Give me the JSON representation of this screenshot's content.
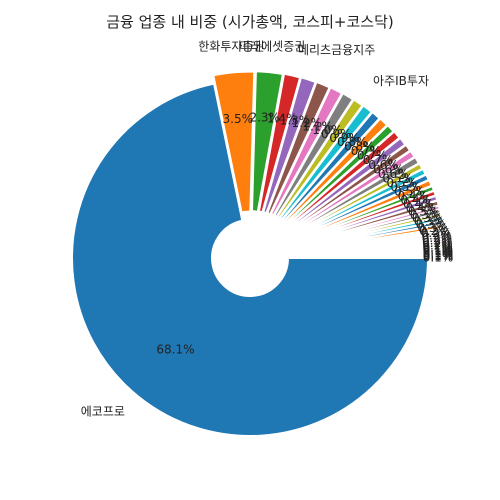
{
  "chart_data": {
    "type": "pie",
    "title": "금융 업종 내 비중 (시가총액, 코스피+코스닥)",
    "style": "donut, slices exploded outward, clockwise from 3 o'clock",
    "slices": [
      {
        "label": "에코프로",
        "value": 68.1,
        "pct_label": "68.1%",
        "color": "#1f77b4"
      },
      {
        "label": "한화투자증권",
        "value": 3.5,
        "pct_label": "3.5%",
        "color": "#ff7f0e"
      },
      {
        "label": "미래에셋증권",
        "value": 2.3,
        "pct_label": "2.3%",
        "color": "#2ca02c"
      },
      {
        "label": "메리츠금융지주",
        "value": 1.4,
        "pct_label": "1.4%",
        "color": "#d62728"
      },
      {
        "label": "",
        "value": 1.3,
        "pct_label": "1.3%",
        "color": "#9467bd"
      },
      {
        "label": "",
        "value": 1.2,
        "pct_label": "1.2%",
        "color": "#8c564b"
      },
      {
        "label": "",
        "value": 1.1,
        "pct_label": "1.1%",
        "color": "#e377c2"
      },
      {
        "label": "",
        "value": 1.0,
        "pct_label": "1.0%",
        "color": "#7f7f7f"
      },
      {
        "label": "아주IB투자",
        "value": 0.9,
        "pct_label": "0.9%",
        "color": "#bcbd22"
      },
      {
        "label": "",
        "value": 0.9,
        "pct_label": "0.9%",
        "color": "#17becf"
      },
      {
        "label": "",
        "value": 0.8,
        "pct_label": "0.8%",
        "color": "#1f77b4"
      },
      {
        "label": "",
        "value": 0.8,
        "pct_label": "0.8%",
        "color": "#ff7f0e"
      },
      {
        "label": "",
        "value": 0.7,
        "pct_label": "0.7%",
        "color": "#2ca02c"
      },
      {
        "label": "",
        "value": 0.7,
        "pct_label": "0.7%",
        "color": "#d62728"
      },
      {
        "label": "",
        "value": 0.7,
        "pct_label": "0.7%",
        "color": "#9467bd"
      },
      {
        "label": "",
        "value": 0.6,
        "pct_label": "0.6%",
        "color": "#8c564b"
      },
      {
        "label": "",
        "value": 0.6,
        "pct_label": "0.6%",
        "color": "#e377c2"
      },
      {
        "label": "",
        "value": 0.6,
        "pct_label": "0.6%",
        "color": "#7f7f7f"
      },
      {
        "label": "",
        "value": 0.5,
        "pct_label": "0.5%",
        "color": "#bcbd22"
      },
      {
        "label": "",
        "value": 0.5,
        "pct_label": "0.5%",
        "color": "#17becf"
      },
      {
        "label": "",
        "value": 0.5,
        "pct_label": "0.5%",
        "color": "#1f77b4"
      },
      {
        "label": "",
        "value": 0.5,
        "pct_label": "0.5%",
        "color": "#ff7f0e"
      },
      {
        "label": "",
        "value": 0.4,
        "pct_label": "0.4%",
        "color": "#2ca02c"
      },
      {
        "label": "",
        "value": 0.4,
        "pct_label": "0.4%",
        "color": "#d62728"
      },
      {
        "label": "",
        "value": 0.4,
        "pct_label": "0.4%",
        "color": "#9467bd"
      },
      {
        "label": "",
        "value": 0.4,
        "pct_label": "0.4%",
        "color": "#8c564b"
      },
      {
        "label": "",
        "value": 0.3,
        "pct_label": "0.3%",
        "color": "#e377c2"
      },
      {
        "label": "",
        "value": 0.3,
        "pct_label": "0.3%",
        "color": "#7f7f7f"
      },
      {
        "label": "",
        "value": 0.3,
        "pct_label": "0.3%",
        "color": "#bcbd22"
      },
      {
        "label": "",
        "value": 0.3,
        "pct_label": "0.3%",
        "color": "#17becf"
      },
      {
        "label": "",
        "value": 0.3,
        "pct_label": "0.3%",
        "color": "#1f77b4"
      },
      {
        "label": "",
        "value": 0.3,
        "pct_label": "0.3%",
        "color": "#ff7f0e"
      },
      {
        "label": "",
        "value": 0.2,
        "pct_label": "0.2%",
        "color": "#2ca02c"
      },
      {
        "label": "",
        "value": 0.2,
        "pct_label": "0.2%",
        "color": "#d62728"
      },
      {
        "label": "",
        "value": 0.2,
        "pct_label": "0.2%",
        "color": "#9467bd"
      },
      {
        "label": "",
        "value": 0.2,
        "pct_label": "0.2%",
        "color": "#8c564b"
      },
      {
        "label": "",
        "value": 0.2,
        "pct_label": "0.2%",
        "color": "#e377c2"
      },
      {
        "label": "",
        "value": 0.2,
        "pct_label": "0.2%",
        "color": "#7f7f7f"
      },
      {
        "label": "",
        "value": 0.2,
        "pct_label": "0.2%",
        "color": "#bcbd22"
      },
      {
        "label": "",
        "value": 0.1,
        "pct_label": "0.1%",
        "color": "#17becf"
      },
      {
        "label": "",
        "value": 0.1,
        "pct_label": "0.1%",
        "color": "#1f77b4"
      },
      {
        "label": "",
        "value": 0.1,
        "pct_label": "0.1%",
        "color": "#ff7f0e"
      },
      {
        "label": "",
        "value": 0.1,
        "pct_label": "0.1%",
        "color": "#2ca02c"
      },
      {
        "label": "",
        "value": 0.1,
        "pct_label": "0.1%",
        "color": "#d62728"
      },
      {
        "label": "",
        "value": 0.1,
        "pct_label": "0.1%",
        "color": "#9467bd"
      },
      {
        "label": "",
        "value": 0.1,
        "pct_label": "0.1%",
        "color": "#8c564b"
      },
      {
        "label": "",
        "value": 0.1,
        "pct_label": "0.1%",
        "color": "#e377c2"
      },
      {
        "label": "",
        "value": 0.1,
        "pct_label": "0.1%",
        "color": "#7f7f7f"
      }
    ]
  }
}
